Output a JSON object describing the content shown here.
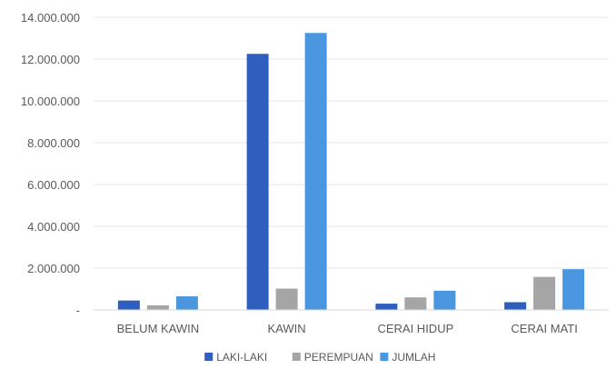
{
  "chart_data": {
    "type": "bar",
    "categories": [
      "BELUM KAWIN",
      "KAWIN",
      "CERAI HIDUP",
      "CERAI MATI"
    ],
    "series": [
      {
        "name": "LAKI-LAKI",
        "color": "#2e5fbf",
        "values": [
          450000,
          12250000,
          300000,
          370000
        ]
      },
      {
        "name": "PEREMPUAN",
        "color": "#a5a5a5",
        "values": [
          220000,
          1020000,
          600000,
          1580000
        ]
      },
      {
        "name": "JUMLAH",
        "color": "#4a97e0",
        "values": [
          650000,
          13250000,
          920000,
          1950000
        ]
      }
    ],
    "y_ticks": [
      "-",
      "2.000.000",
      "4.000.000",
      "6.000.000",
      "8.000.000",
      "10.000.000",
      "12.000.000",
      "14.000.000"
    ],
    "ylim": [
      0,
      14000000
    ],
    "grid": true,
    "legend_position": "bottom"
  }
}
